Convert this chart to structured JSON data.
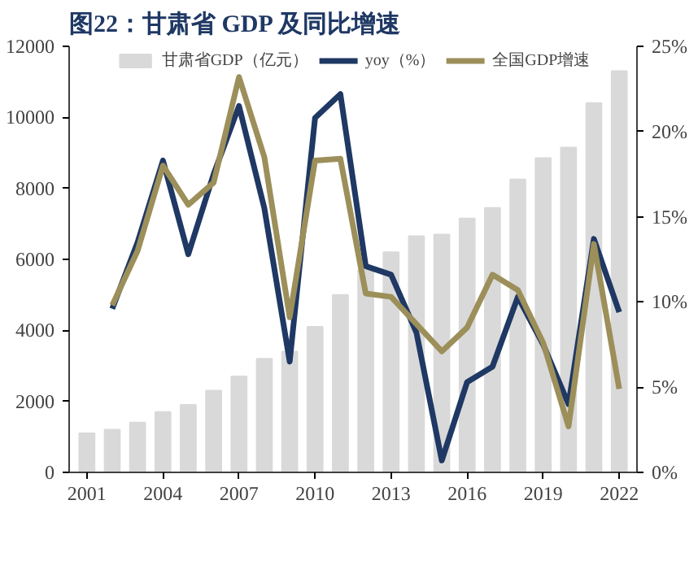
{
  "chart_data": {
    "type": "bar",
    "title": "图22：甘肃省 GDP 及同比增速",
    "x": [
      2001,
      2002,
      2003,
      2004,
      2005,
      2006,
      2007,
      2008,
      2009,
      2010,
      2011,
      2012,
      2013,
      2014,
      2015,
      2016,
      2017,
      2018,
      2019,
      2020,
      2021,
      2022
    ],
    "series": [
      {
        "name": "甘肃省GDP（亿元）",
        "color": "#d9d9d9",
        "values": [
          1100,
          1200,
          1400,
          1700,
          1900,
          2300,
          2700,
          3200,
          3400,
          4100,
          5000,
          5700,
          6200,
          6650,
          6700,
          7150,
          7450,
          8250,
          8850,
          9150,
          10400,
          11300
        ]
      },
      {
        "name": "yoy（%）",
        "type": "line",
        "axis": "y2",
        "color": "#1f3864",
        "values": [
          null,
          9.6,
          13.5,
          18.3,
          12.8,
          17.5,
          21.5,
          15.5,
          6.5,
          20.8,
          22.2,
          12.1,
          11.6,
          8.2,
          0.7,
          5.3,
          6.2,
          10.3,
          7.5,
          4.0,
          13.7,
          9.4
        ]
      },
      {
        "name": "全国GDP增速",
        "type": "line",
        "axis": "y2",
        "color": "#9c8f5a",
        "values": [
          null,
          9.8,
          13.0,
          18.0,
          15.7,
          17.0,
          23.2,
          18.5,
          9.1,
          18.3,
          18.4,
          10.5,
          10.3,
          8.7,
          7.1,
          8.5,
          11.6,
          10.7,
          7.6,
          2.7,
          13.4,
          4.9
        ]
      }
    ],
    "xlim": [
      2000.3,
      2022.7
    ],
    "xticks": [
      2001,
      2004,
      2007,
      2010,
      2013,
      2016,
      2019,
      2022
    ],
    "ylim": [
      0,
      12000
    ],
    "yticks": [
      0,
      2000,
      4000,
      6000,
      8000,
      10000,
      12000
    ],
    "y2lim": [
      0,
      25
    ],
    "y2ticks": [
      {
        "value": 0,
        "label": "0%"
      },
      {
        "value": 5,
        "label": "5%"
      },
      {
        "value": 10,
        "label": "10%"
      },
      {
        "value": 15,
        "label": "15%"
      },
      {
        "value": 20,
        "label": "20%"
      },
      {
        "value": 25,
        "label": "25%"
      }
    ],
    "legend": "top",
    "grid": false
  }
}
